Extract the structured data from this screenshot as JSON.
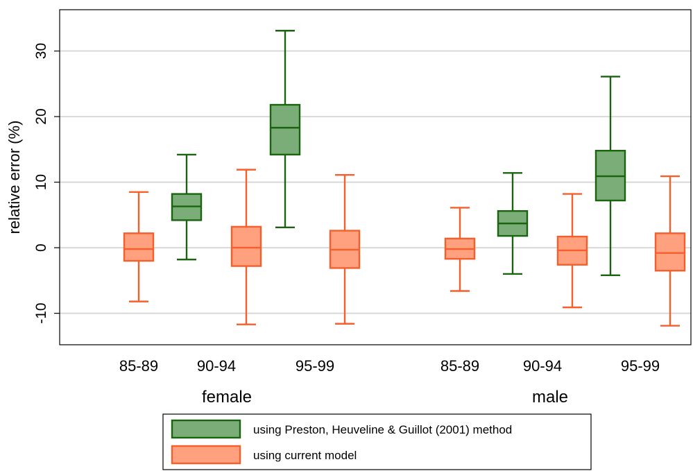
{
  "chart_data": {
    "type": "box",
    "title": "",
    "xlabel": "",
    "ylabel": "relative error (%)",
    "ylim": [
      -14.8,
      36.3
    ],
    "yticks": [
      -10,
      0,
      10,
      20,
      30
    ],
    "ytick_labels": [
      "-10",
      "0",
      "10",
      "20",
      "30"
    ],
    "grid": true,
    "legend_position": "bottom",
    "groups": [
      {
        "label": "female",
        "categories": [
          "85-89",
          "90-94",
          "95-99"
        ],
        "boxes": [
          {
            "category": "85-89",
            "series": "current",
            "whisker_low": -8.2,
            "q1": -2.0,
            "median": -0.2,
            "q3": 2.2,
            "whisker_high": 8.5
          },
          {
            "category": "90-94",
            "series": "preston",
            "whisker_low": -1.8,
            "q1": 4.2,
            "median": 6.3,
            "q3": 8.2,
            "whisker_high": 14.2
          },
          {
            "category": "90-94",
            "series": "current",
            "whisker_low": -11.7,
            "q1": -2.8,
            "median": 0.0,
            "q3": 3.2,
            "whisker_high": 11.9
          },
          {
            "category": "95-99",
            "series": "preston",
            "whisker_low": 3.1,
            "q1": 14.2,
            "median": 18.3,
            "q3": 21.8,
            "whisker_high": 33.1
          },
          {
            "category": "95-99",
            "series": "current",
            "whisker_low": -11.6,
            "q1": -3.1,
            "median": -0.3,
            "q3": 2.6,
            "whisker_high": 11.1
          }
        ]
      },
      {
        "label": "male",
        "categories": [
          "85-89",
          "90-94",
          "95-99"
        ],
        "boxes": [
          {
            "category": "85-89",
            "series": "current",
            "whisker_low": -6.6,
            "q1": -1.7,
            "median": -0.2,
            "q3": 1.4,
            "whisker_high": 6.1
          },
          {
            "category": "90-94",
            "series": "preston",
            "whisker_low": -4.0,
            "q1": 1.8,
            "median": 3.7,
            "q3": 5.6,
            "whisker_high": 11.4
          },
          {
            "category": "90-94",
            "series": "current",
            "whisker_low": -9.1,
            "q1": -2.6,
            "median": -0.4,
            "q3": 1.7,
            "whisker_high": 8.2
          },
          {
            "category": "95-99",
            "series": "preston",
            "whisker_low": -4.2,
            "q1": 7.2,
            "median": 10.9,
            "q3": 14.8,
            "whisker_high": 26.1
          },
          {
            "category": "95-99",
            "series": "current",
            "whisker_low": -11.9,
            "q1": -3.5,
            "median": -0.8,
            "q3": 2.2,
            "whisker_high": 10.9
          }
        ]
      }
    ],
    "series": [
      {
        "key": "preston",
        "name": "using Preston, Heuveline & Guillot (2001) method",
        "fill": "#7aad78",
        "stroke": "#1a6410"
      },
      {
        "key": "current",
        "name": "using current model",
        "fill": "#ffa07e",
        "stroke": "#f45f2c"
      }
    ],
    "colors": {
      "grid": "#d8d8d8",
      "axis": "#000000"
    }
  }
}
